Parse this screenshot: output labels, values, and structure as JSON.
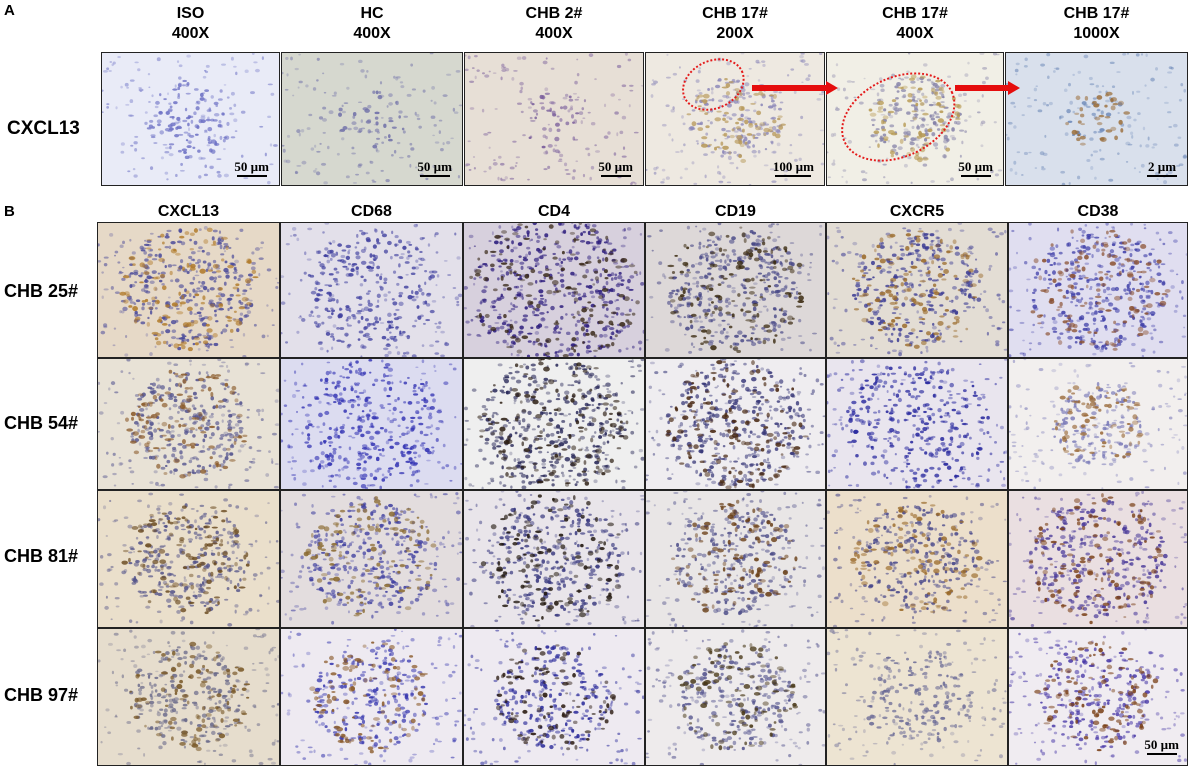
{
  "panel_a": {
    "letter": "A",
    "row_label": "CXCL13",
    "columns": [
      {
        "line1": "ISO",
        "line2": "400X",
        "scale": "50 µm",
        "bg": "#e9ebf7",
        "nuc": "#6b6fc4",
        "stain": "none",
        "cluster": 0.25
      },
      {
        "line1": "HC",
        "line2": "400X",
        "scale": "50 µm",
        "bg": "#d6d8cf",
        "nuc": "#6f6fa8",
        "stain": "none",
        "cluster": 0.1
      },
      {
        "line1": "CHB 2#",
        "line2": "400X",
        "scale": "50 µm",
        "bg": "#e7dfd6",
        "nuc": "#7b5f9c",
        "stain": "none",
        "cluster": 0.1
      },
      {
        "line1": "CHB 17#",
        "line2": "200X",
        "scale": "100 µm",
        "bg": "#eee9e1",
        "nuc": "#8a86b8",
        "stain": "#b89a5c",
        "cluster": 0.3
      },
      {
        "line1": "CHB 17#",
        "line2": "400X",
        "scale": "50 µm",
        "bg": "#f1efe6",
        "nuc": "#8582a8",
        "stain": "#b79a53",
        "cluster": 0.3
      },
      {
        "line1": "CHB 17#",
        "line2": "1000X",
        "scale": "2 µm",
        "bg": "#d9e0ec",
        "nuc": "#6c88b8",
        "stain": "#9a6d3a",
        "cluster": 0.05
      }
    ]
  },
  "panel_b": {
    "letter": "B",
    "columns": [
      "CXCL13",
      "CD68",
      "CD4",
      "CD19",
      "CXCR5",
      "CD38"
    ],
    "rows": [
      {
        "label": "CHB 25#",
        "tiles": [
          {
            "bg": "#e6d9c7",
            "nuc": "#4a4a9a",
            "stain": "#b07a2a",
            "cluster": 0.6
          },
          {
            "bg": "#e3e0ea",
            "nuc": "#3f3f9f",
            "stain": "none",
            "cluster": 0.6
          },
          {
            "bg": "#d7d0dd",
            "nuc": "#2e1e7e",
            "stain": "#3a2a1a",
            "cluster": 0.8
          },
          {
            "bg": "#ddd8d8",
            "nuc": "#4a4a88",
            "stain": "#3a2a10",
            "cluster": 0.6
          },
          {
            "bg": "#e3ddd4",
            "nuc": "#3d3d94",
            "stain": "#9a6a2a",
            "cluster": 0.55
          },
          {
            "bg": "#e0def0",
            "nuc": "#3f3fa8",
            "stain": "#8a5030",
            "cluster": 0.6
          }
        ]
      },
      {
        "label": "CHB 54#",
        "tiles": [
          {
            "bg": "#e8e2d6",
            "nuc": "#55558f",
            "stain": "#8a5a2a",
            "cluster": 0.5
          },
          {
            "bg": "#dcdcf0",
            "nuc": "#3434b4",
            "stain": "none",
            "cluster": 0.7
          },
          {
            "bg": "#efefef",
            "nuc": "#2a2a5a",
            "stain": "#2a1c10",
            "cluster": 0.7
          },
          {
            "bg": "#efedf0",
            "nuc": "#3a3a7a",
            "stain": "#4a2a14",
            "cluster": 0.65
          },
          {
            "bg": "#e9e5ee",
            "nuc": "#2b2ba0",
            "stain": "none",
            "cluster": 0.7
          },
          {
            "bg": "#f2efee",
            "nuc": "#7a7ab8",
            "stain": "#9a6a3a",
            "cluster": 0.3
          }
        ]
      },
      {
        "label": "CHB 81#",
        "tiles": [
          {
            "bg": "#eadfcb",
            "nuc": "#54548a",
            "stain": "#6a4a20",
            "cluster": 0.5
          },
          {
            "bg": "#e3ddde",
            "nuc": "#4040a0",
            "stain": "#8a6a30",
            "cluster": 0.55
          },
          {
            "bg": "#e9e5ea",
            "nuc": "#3a3a80",
            "stain": "#1e140a",
            "cluster": 0.6
          },
          {
            "bg": "#e9e6e6",
            "nuc": "#50508a",
            "stain": "#6a4018",
            "cluster": 0.5
          },
          {
            "bg": "#ecdfcb",
            "nuc": "#45458a",
            "stain": "#9a6a2a",
            "cluster": 0.5
          },
          {
            "bg": "#eadfe1",
            "nuc": "#4a3a9a",
            "stain": "#7a4018",
            "cluster": 0.6
          }
        ]
      },
      {
        "label": "CHB 97#",
        "scale": "50 µm",
        "tiles": [
          {
            "bg": "#e6ddcd",
            "nuc": "#6a6a8a",
            "stain": "#7a5a2a",
            "cluster": 0.45
          },
          {
            "bg": "#eeeaf1",
            "nuc": "#3a3ab0",
            "stain": "#8a5a2a",
            "cluster": 0.45
          },
          {
            "bg": "#eeeaf1",
            "nuc": "#2a2a9a",
            "stain": "#2a1a10",
            "cluster": 0.45
          },
          {
            "bg": "#eeebec",
            "nuc": "#55558f",
            "stain": "#4a3a1a",
            "cluster": 0.45
          },
          {
            "bg": "#ede4d2",
            "nuc": "#6a6a96",
            "stain": "none",
            "cluster": 0.4
          },
          {
            "bg": "#f0ecf1",
            "nuc": "#4a3aa8",
            "stain": "#7a4018",
            "cluster": 0.45
          }
        ]
      }
    ]
  },
  "colors": {
    "arrow": "#e50d0d",
    "ellipse": "#e41a1a"
  }
}
